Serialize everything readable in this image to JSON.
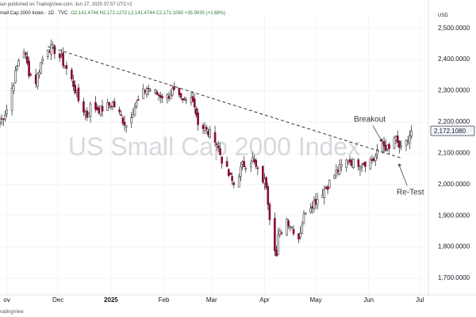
{
  "header": {
    "published_line": "ian published on TradingView.com, Jun 27, 2025 07:57 UTC+2",
    "symbol_line": "mall Cap 2000 Index · 1D · TVC",
    "ohlc_line": "O2,141.4744 H2,172.1272 L2,141.4744 C2,172.1080 +35.9035 (+1.68%)"
  },
  "footer": {
    "brand": "radingView"
  },
  "chart_data": {
    "type": "candlestick",
    "watermark": "US Small Cap 2000 Index",
    "currency": "USD",
    "y_ticks": [
      "2,500.0000",
      "2,400.0000",
      "2,300.0000",
      "2,200.0000",
      "2,100.0000",
      "2,000.0000",
      "1,900.0000",
      "1,800.0000",
      "1,700.0000"
    ],
    "y_tick_values": [
      2500,
      2400,
      2300,
      2200,
      2100,
      2000,
      1900,
      1800,
      1700
    ],
    "ylim": [
      1670,
      2540
    ],
    "x_ticks": [
      "ov",
      "Dec",
      "2025",
      "Feb",
      "Mar",
      "Apr",
      "May",
      "Jun",
      "Jul"
    ],
    "x_tick_dates": [
      "2024-11-01",
      "2024-12-01",
      "2025-01-01",
      "2025-02-01",
      "2025-03-01",
      "2025-04-01",
      "2025-05-01",
      "2025-06-01",
      "2025-07-01"
    ],
    "xlim": [
      "2024-10-28",
      "2025-07-06"
    ],
    "last_price": "2,172.1080",
    "last_value": 2172.108,
    "annotations": [
      {
        "text": "Breakout",
        "date": "2025-06-10",
        "value": 2110
      },
      {
        "text": "Re-Test",
        "date": "2025-06-18",
        "value": 2080
      }
    ],
    "trendline": {
      "start": {
        "date": "2024-11-25",
        "value": 2442
      },
      "end": {
        "date": "2025-06-20",
        "value": 2085
      }
    },
    "colors": {
      "up": "#ffffff",
      "down": "#880e2f",
      "wick": "#3a3a3a",
      "trendline": "#333333",
      "watermark": "#d7d9de",
      "grid": "#f0f3fa"
    },
    "anchors": [
      [
        "2024-10-28",
        2200
      ],
      [
        "2024-11-01",
        2240
      ],
      [
        "2024-11-05",
        2330
      ],
      [
        "2024-11-08",
        2400
      ],
      [
        "2024-11-11",
        2430
      ],
      [
        "2024-11-14",
        2360
      ],
      [
        "2024-11-18",
        2330
      ],
      [
        "2024-11-21",
        2390
      ],
      [
        "2024-11-25",
        2440
      ],
      [
        "2024-11-29",
        2430
      ],
      [
        "2024-12-03",
        2400
      ],
      [
        "2024-12-06",
        2370
      ],
      [
        "2024-12-10",
        2320
      ],
      [
        "2024-12-13",
        2270
      ],
      [
        "2024-12-18",
        2220
      ],
      [
        "2024-12-20",
        2250
      ],
      [
        "2024-12-26",
        2240
      ],
      [
        "2025-01-02",
        2260
      ],
      [
        "2025-01-10",
        2190
      ],
      [
        "2025-01-15",
        2250
      ],
      [
        "2025-01-22",
        2310
      ],
      [
        "2025-01-28",
        2290
      ],
      [
        "2025-02-03",
        2280
      ],
      [
        "2025-02-06",
        2300
      ],
      [
        "2025-02-12",
        2260
      ],
      [
        "2025-02-18",
        2280
      ],
      [
        "2025-02-21",
        2200
      ],
      [
        "2025-02-26",
        2170
      ],
      [
        "2025-03-03",
        2150
      ],
      [
        "2025-03-07",
        2080
      ],
      [
        "2025-03-11",
        2030
      ],
      [
        "2025-03-14",
        2000
      ],
      [
        "2025-03-19",
        2060
      ],
      [
        "2025-03-25",
        2080
      ],
      [
        "2025-03-28",
        2040
      ],
      [
        "2025-04-02",
        2000
      ],
      [
        "2025-04-04",
        1900
      ],
      [
        "2025-04-08",
        1770
      ],
      [
        "2025-04-09",
        1830
      ],
      [
        "2025-04-14",
        1890
      ],
      [
        "2025-04-21",
        1830
      ],
      [
        "2025-04-25",
        1920
      ],
      [
        "2025-05-01",
        1950
      ],
      [
        "2025-05-07",
        1990
      ],
      [
        "2025-05-13",
        2040
      ],
      [
        "2025-05-20",
        2080
      ],
      [
        "2025-05-23",
        2070
      ],
      [
        "2025-05-29",
        2070
      ],
      [
        "2025-06-04",
        2080
      ],
      [
        "2025-06-09",
        2130
      ],
      [
        "2025-06-13",
        2110
      ],
      [
        "2025-06-16",
        2150
      ],
      [
        "2025-06-20",
        2110
      ],
      [
        "2025-06-23",
        2130
      ],
      [
        "2025-06-26",
        2170
      ]
    ]
  }
}
